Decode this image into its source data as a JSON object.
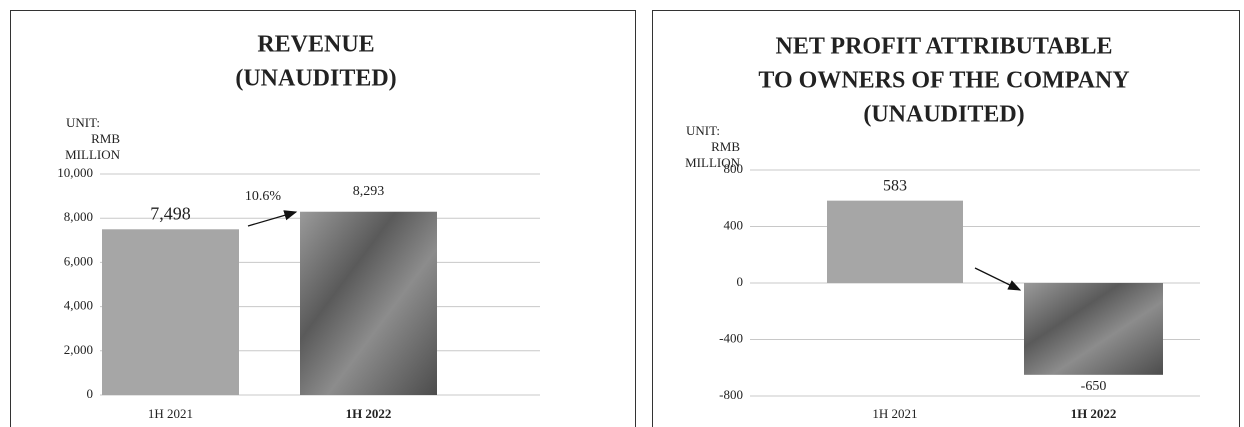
{
  "chart_data": [
    {
      "type": "bar",
      "title": [
        "REVENUE",
        "(UNAUDITED)"
      ],
      "unit_label": [
        "UNIT:",
        "RMB",
        "MILLION"
      ],
      "categories": [
        "1H 2021",
        "1H 2022"
      ],
      "values": [
        7498,
        8293
      ],
      "value_labels": [
        "7,498",
        "8,293"
      ],
      "colors": [
        "#a6a6a6",
        "#707070"
      ],
      "bold_last_category": true,
      "annotation": "10.6%",
      "ylim": [
        0,
        10000
      ],
      "yticks": [
        {
          "value": 0,
          "label": "0"
        },
        {
          "value": 2000,
          "label": "2,000"
        },
        {
          "value": 4000,
          "label": "4,000"
        },
        {
          "value": 6000,
          "label": "6,000"
        },
        {
          "value": 8000,
          "label": "8,000"
        },
        {
          "value": 10000,
          "label": "10,000"
        }
      ],
      "grid": true
    },
    {
      "type": "bar",
      "title": [
        "NET PROFIT ATTRIBUTABLE",
        "TO OWNERS OF THE COMPANY",
        "(UNAUDITED)"
      ],
      "unit_label": [
        "UNIT:",
        "RMB",
        "MILLION"
      ],
      "categories": [
        "1H 2021",
        "1H 2022"
      ],
      "values": [
        583,
        -650
      ],
      "colors": [
        "#a6a6a6",
        "#707070"
      ],
      "bold_last_category": true,
      "ylim": [
        -800,
        800
      ],
      "yticks": [
        -800,
        -400,
        0,
        400,
        800
      ],
      "grid": true
    }
  ]
}
